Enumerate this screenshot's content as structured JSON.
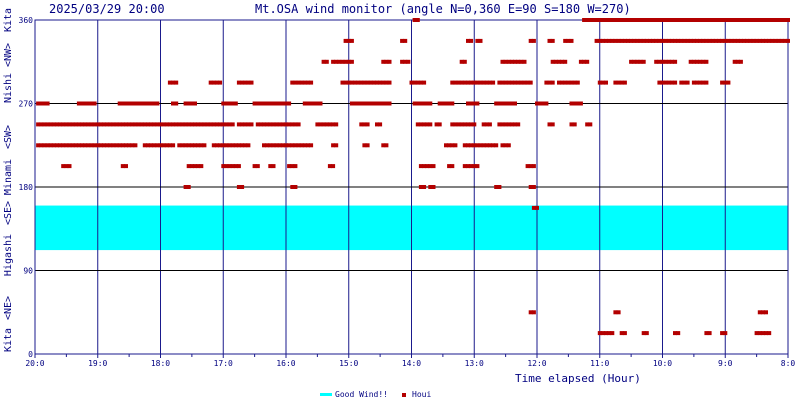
{
  "header": {
    "datetime": "2025/03/29 20:00",
    "title": "Mt.OSA wind monitor (angle N=0,360 E=90 S=180 W=270)"
  },
  "xlabel": "Time elapsed (Hour)",
  "yaxis_side_labels": [
    "Kita",
    "<NE>",
    "Higashi",
    "<SE>",
    "Minami",
    "<SW>",
    "Nishi",
    "<NW>",
    "Kita"
  ],
  "legend": {
    "good_label": "Good Wind!!",
    "houi_label": "Houi"
  },
  "colors": {
    "grid": "#1a1a8c",
    "band": "#00ffff",
    "points": "#b30000",
    "text": "#000080"
  },
  "chart_data": {
    "type": "scatter",
    "title": "Mt.OSA wind monitor (angle N=0,360 E=90 S=180 W=270)",
    "xlabel": "Time elapsed (Hour)",
    "ylabel": "",
    "xlim": [
      20,
      8
    ],
    "ylim": [
      0,
      360
    ],
    "x_ticks": [
      20,
      19,
      18,
      17,
      16,
      15,
      14,
      13,
      12,
      11,
      10,
      9,
      8
    ],
    "x_tick_labels": [
      "20:0",
      "19:0",
      "18:0",
      "17:0",
      "16:0",
      "15:0",
      "14:0",
      "13:0",
      "12:0",
      "11:0",
      "10:0",
      "9:0",
      "8:0"
    ],
    "y_ticks": [
      0,
      90,
      180,
      270,
      360
    ],
    "y_tick_labels": [
      "0",
      "90",
      "180",
      "270",
      "360"
    ],
    "good_wind_band": [
      112,
      160
    ],
    "series_name": "Houi",
    "runs": [
      {
        "y": 360,
        "segs": [
          [
            13.95,
            13.9
          ],
          [
            11.25,
            10.8
          ],
          [
            10.75,
            8.0
          ]
        ]
      },
      {
        "y": 337.5,
        "segs": [
          [
            15.05,
            14.95
          ],
          [
            14.15,
            14.1
          ],
          [
            13.1,
            13.05
          ],
          [
            12.95,
            12.9
          ],
          [
            12.1,
            12.05
          ],
          [
            11.8,
            11.75
          ],
          [
            11.55,
            11.45
          ],
          [
            11.05,
            8.0
          ]
        ]
      },
      {
        "y": 315,
        "segs": [
          [
            15.4,
            15.35
          ],
          [
            15.25,
            14.95
          ],
          [
            14.45,
            14.35
          ],
          [
            14.15,
            14.05
          ],
          [
            13.2,
            13.15
          ],
          [
            12.55,
            12.3
          ],
          [
            12.25,
            12.2
          ],
          [
            11.75,
            11.55
          ],
          [
            11.3,
            11.2
          ],
          [
            10.5,
            10.3
          ],
          [
            10.1,
            9.8
          ],
          [
            9.55,
            9.3
          ],
          [
            8.85,
            8.75
          ]
        ]
      },
      {
        "y": 292.5,
        "segs": [
          [
            17.85,
            17.75
          ],
          [
            17.2,
            17.05
          ],
          [
            16.75,
            16.55
          ],
          [
            15.9,
            15.6
          ],
          [
            15.1,
            14.6
          ],
          [
            14.55,
            14.35
          ],
          [
            14.0,
            13.8
          ],
          [
            13.35,
            13.0
          ],
          [
            12.95,
            12.7
          ],
          [
            12.6,
            12.1
          ],
          [
            11.85,
            11.75
          ],
          [
            11.65,
            11.35
          ],
          [
            11.0,
            10.9
          ],
          [
            10.75,
            10.6
          ],
          [
            10.05,
            9.8
          ],
          [
            9.7,
            9.6
          ],
          [
            9.5,
            9.3
          ],
          [
            9.05,
            8.95
          ]
        ]
      },
      {
        "y": 270,
        "segs": [
          [
            19.95,
            19.8
          ],
          [
            19.3,
            19.05
          ],
          [
            18.65,
            18.05
          ],
          [
            17.8,
            17.75
          ],
          [
            17.6,
            17.45
          ],
          [
            17.0,
            16.8
          ],
          [
            16.5,
            15.95
          ],
          [
            15.7,
            15.45
          ],
          [
            14.95,
            14.35
          ],
          [
            13.95,
            13.7
          ],
          [
            13.55,
            13.35
          ],
          [
            13.1,
            12.95
          ],
          [
            12.65,
            12.35
          ],
          [
            12.0,
            11.85
          ],
          [
            11.45,
            11.3
          ]
        ]
      },
      {
        "y": 247.5,
        "segs": [
          [
            19.95,
            16.85
          ],
          [
            16.75,
            16.55
          ],
          [
            16.45,
            15.8
          ],
          [
            15.5,
            15.2
          ],
          [
            14.8,
            14.7
          ],
          [
            14.55,
            14.5
          ],
          [
            13.9,
            13.7
          ],
          [
            13.6,
            13.55
          ],
          [
            13.35,
            13.25
          ],
          [
            13.2,
            13.0
          ],
          [
            12.85,
            12.75
          ],
          [
            12.6,
            12.3
          ],
          [
            11.8,
            11.75
          ],
          [
            11.45,
            11.4
          ],
          [
            11.2,
            11.15
          ]
        ]
      },
      {
        "y": 225,
        "segs": [
          [
            19.95,
            18.4
          ],
          [
            18.25,
            17.8
          ],
          [
            17.7,
            17.3
          ],
          [
            17.15,
            16.6
          ],
          [
            16.35,
            15.6
          ],
          [
            15.25,
            15.2
          ],
          [
            14.75,
            14.7
          ],
          [
            14.45,
            14.4
          ],
          [
            13.45,
            13.3
          ],
          [
            13.15,
            12.65
          ],
          [
            12.55,
            12.45
          ]
        ]
      },
      {
        "y": 202.5,
        "segs": [
          [
            19.55,
            19.45
          ],
          [
            18.6,
            18.55
          ],
          [
            17.55,
            17.35
          ],
          [
            17.0,
            16.75
          ],
          [
            16.5,
            16.45
          ],
          [
            16.25,
            16.2
          ],
          [
            15.95,
            15.85
          ],
          [
            15.3,
            15.25
          ],
          [
            13.85,
            13.65
          ],
          [
            13.4,
            13.35
          ],
          [
            13.15,
            12.95
          ],
          [
            12.15,
            12.05
          ]
        ]
      },
      {
        "y": 180,
        "segs": [
          [
            17.6,
            17.55
          ],
          [
            16.75,
            16.7
          ],
          [
            15.9,
            15.85
          ],
          [
            13.85,
            13.8
          ],
          [
            13.7,
            13.65
          ],
          [
            12.65,
            12.6
          ],
          [
            12.1,
            12.05
          ]
        ]
      },
      {
        "y": 157.5,
        "segs": [
          [
            12.05,
            12.0
          ]
        ]
      },
      {
        "y": 45,
        "segs": [
          [
            12.1,
            12.05
          ],
          [
            10.75,
            10.7
          ],
          [
            8.45,
            8.35
          ]
        ]
      },
      {
        "y": 22.5,
        "segs": [
          [
            11.0,
            10.8
          ],
          [
            10.65,
            10.6
          ],
          [
            10.3,
            10.25
          ],
          [
            9.8,
            9.75
          ],
          [
            9.3,
            9.25
          ],
          [
            9.05,
            9.0
          ],
          [
            8.5,
            8.3
          ]
        ]
      }
    ]
  }
}
